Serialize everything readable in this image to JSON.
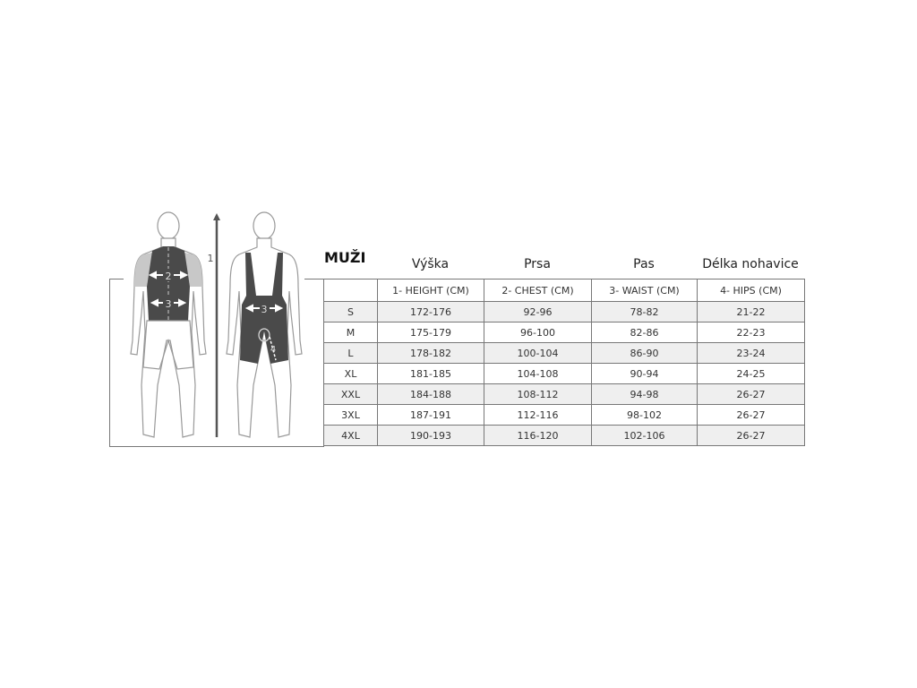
{
  "title": "MUŽI",
  "column_titles": [
    "Výška",
    "Prsa",
    "Pas",
    "Délka nohavice"
  ],
  "column_headers": [
    "",
    "1- HEIGHT (CM)",
    "2- CHEST (CM)",
    "3- WAIST (CM)",
    "4- HIPS (CM)"
  ],
  "rows": [
    {
      "size": "S",
      "height": "172-176",
      "chest": "92-96",
      "waist": "78-82",
      "hips": "21-22"
    },
    {
      "size": "M",
      "height": "175-179",
      "chest": "96-100",
      "waist": "82-86",
      "hips": "22-23"
    },
    {
      "size": "L",
      "height": "178-182",
      "chest": "100-104",
      "waist": "86-90",
      "hips": "23-24"
    },
    {
      "size": "XL",
      "height": "181-185",
      "chest": "104-108",
      "waist": "90-94",
      "hips": "24-25"
    },
    {
      "size": "XXL",
      "height": "184-188",
      "chest": "108-112",
      "waist": "94-98",
      "hips": "26-27"
    },
    {
      "size": "3XL",
      "height": "187-191",
      "chest": "112-116",
      "waist": "98-102",
      "hips": "26-27"
    },
    {
      "size": "4XL",
      "height": "190-193",
      "chest": "116-120",
      "waist": "102-106",
      "hips": "26-27"
    }
  ],
  "figure_labels": {
    "height": "1",
    "chest": "2",
    "waist_front": "3",
    "waist_back": "3",
    "hips": "4"
  },
  "colors": {
    "garment": "#4a4a4a",
    "sleeve": "#c8c8c8",
    "outline": "#999999",
    "row_shade": "#efefef"
  }
}
